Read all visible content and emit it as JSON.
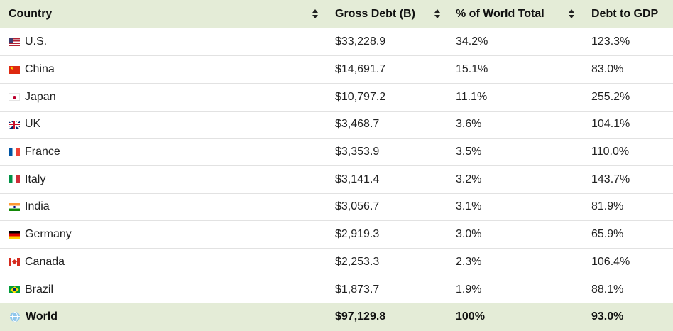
{
  "table": {
    "headers": [
      {
        "label": "Country",
        "sort_icon": "sort-icon"
      },
      {
        "label": "Gross Debt (B)",
        "sort_icon": "sort-icon"
      },
      {
        "label": "% of World Total",
        "sort_icon": "sort-icon"
      },
      {
        "label": "Debt to GDP",
        "sort_icon": "sort-icon"
      }
    ],
    "rows": [
      {
        "flag": "us-flag-icon",
        "country": "U.S.",
        "debt": "$33,228.9",
        "share": "34.2%",
        "ratio": "123.3%"
      },
      {
        "flag": "china-flag-icon",
        "country": "China",
        "debt": "$14,691.7",
        "share": "15.1%",
        "ratio": "83.0%"
      },
      {
        "flag": "japan-flag-icon",
        "country": "Japan",
        "debt": "$10,797.2",
        "share": "11.1%",
        "ratio": "255.2%"
      },
      {
        "flag": "uk-flag-icon",
        "country": "UK",
        "debt": "$3,468.7",
        "share": "3.6%",
        "ratio": "104.1%"
      },
      {
        "flag": "france-flag-icon",
        "country": "France",
        "debt": "$3,353.9",
        "share": "3.5%",
        "ratio": "110.0%"
      },
      {
        "flag": "italy-flag-icon",
        "country": "Italy",
        "debt": "$3,141.4",
        "share": "3.2%",
        "ratio": "143.7%"
      },
      {
        "flag": "india-flag-icon",
        "country": "India",
        "debt": "$3,056.7",
        "share": "3.1%",
        "ratio": "81.9%"
      },
      {
        "flag": "germany-flag-icon",
        "country": "Germany",
        "debt": "$2,919.3",
        "share": "3.0%",
        "ratio": "65.9%"
      },
      {
        "flag": "canada-flag-icon",
        "country": "Canada",
        "debt": "$2,253.3",
        "share": "2.3%",
        "ratio": "106.4%"
      },
      {
        "flag": "brazil-flag-icon",
        "country": "Brazil",
        "debt": "$1,873.7",
        "share": "1.9%",
        "ratio": "88.1%"
      }
    ],
    "total": {
      "icon": "globe-icon",
      "country": "World",
      "debt": "$97,129.8",
      "share": "100%",
      "ratio": "93.0%"
    }
  },
  "colors": {
    "header_bg": "#e4ecd7",
    "total_bg": "#e4ecd7",
    "row_border": "#e2e2e2"
  }
}
